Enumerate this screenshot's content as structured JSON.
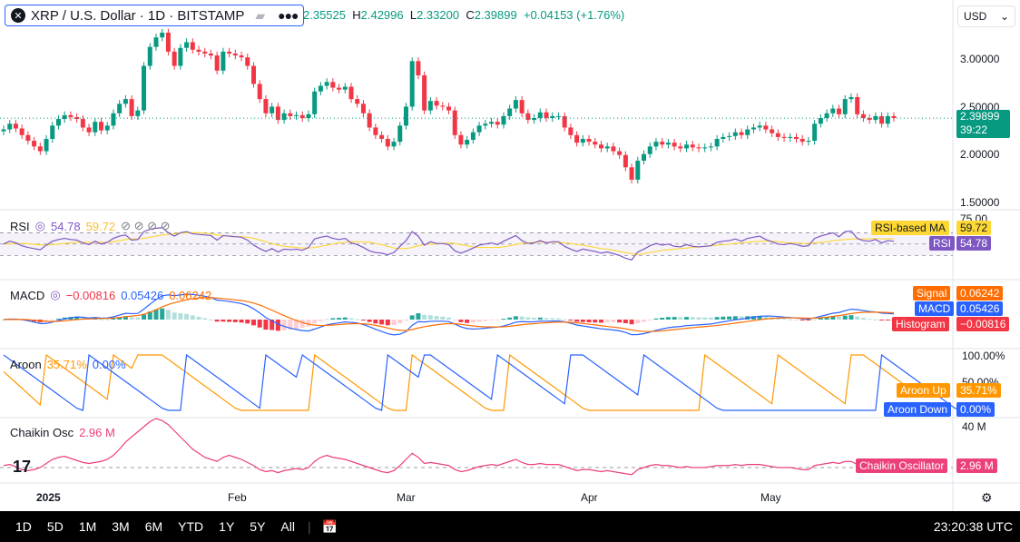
{
  "header": {
    "symbol_title": "XRP / U.S. Dollar · 1D · BITSTAMP",
    "ohlc": {
      "open_label": "",
      "open_value": "2.35525",
      "high_label": "H",
      "high_value": "2.42996",
      "low_label": "L",
      "low_value": "2.33200",
      "close_label": "C",
      "close_value": "2.39899",
      "change": "+0.04153 (+1.76%)"
    },
    "currency": "USD"
  },
  "price_axis": [
    "3.00000",
    "2.50000",
    "2.00000",
    "1.50000"
  ],
  "current_price": {
    "value": "2.39899",
    "countdown": "39:22",
    "color": "#089981"
  },
  "panes": {
    "rsi": {
      "title": "RSI",
      "value1": "54.78",
      "value2": "59.72",
      "axis_top": "75.00",
      "ma_label": "RSI-based MA",
      "ma_value": "59.72",
      "rsi_label": "RSI",
      "rsi_value": "54.78"
    },
    "macd": {
      "title": "MACD",
      "hist_value": "−0.00816",
      "macd_value": "0.05426",
      "signal_value": "0.06242",
      "signal_label": "Signal",
      "macd_label": "MACD",
      "histogram_label": "Histogram"
    },
    "aroon": {
      "title": "Aroon",
      "up_value": "35.71%",
      "down_value": "0.00%",
      "axis_top": "100.00%",
      "axis_mid": "50.00%",
      "up_label": "Aroon Up",
      "down_label": "Aroon Down"
    },
    "chaikin": {
      "title": "Chaikin Osc",
      "value": "2.96 M",
      "axis_top": "40 M",
      "tag_label": "Chaikin Oscillator",
      "tag_value": "2.96 M"
    }
  },
  "time_axis": [
    "2025",
    "Feb",
    "Mar",
    "Apr",
    "May"
  ],
  "bottom_bar": {
    "ranges": [
      "1D",
      "5D",
      "1M",
      "3M",
      "6M",
      "YTD",
      "1Y",
      "5Y",
      "All"
    ],
    "clock": "23:20:38 UTC"
  },
  "colors": {
    "up": "#089981",
    "down": "#f23645",
    "rsi": "#7e57c2",
    "rsi_ma": "#fdd835",
    "macd": "#2962ff",
    "signal": "#ff6d00",
    "aroon_up": "#ff9800",
    "aroon_down": "#2962ff",
    "chaikin": "#ec407a"
  },
  "chart_data": {
    "type": "candlestick",
    "title": "XRP / U.S. Dollar · 1D · BITSTAMP",
    "ylim": [
      1.5,
      3.3
    ],
    "x_labels": [
      "2025",
      "Feb",
      "Mar",
      "Apr",
      "May"
    ],
    "close": [
      2.28,
      2.34,
      2.29,
      2.22,
      2.16,
      2.1,
      2.05,
      2.18,
      2.32,
      2.39,
      2.43,
      2.41,
      2.39,
      2.3,
      2.25,
      2.36,
      2.27,
      2.32,
      2.45,
      2.55,
      2.6,
      2.42,
      2.48,
      2.95,
      3.15,
      3.25,
      3.3,
      3.1,
      2.95,
      3.14,
      3.2,
      3.12,
      3.1,
      3.08,
      3.06,
      2.9,
      3.1,
      3.08,
      3.06,
      3.04,
      2.95,
      2.76,
      2.6,
      2.45,
      2.52,
      2.38,
      2.45,
      2.42,
      2.43,
      2.4,
      2.44,
      2.68,
      2.74,
      2.78,
      2.72,
      2.7,
      2.73,
      2.6,
      2.55,
      2.45,
      2.3,
      2.22,
      2.18,
      2.1,
      2.15,
      2.32,
      2.52,
      3.0,
      2.85,
      2.48,
      2.58,
      2.53,
      2.52,
      2.48,
      2.22,
      2.12,
      2.17,
      2.25,
      2.32,
      2.34,
      2.36,
      2.33,
      2.42,
      2.5,
      2.59,
      2.45,
      2.38,
      2.4,
      2.46,
      2.4,
      2.42,
      2.42,
      2.3,
      2.22,
      2.14,
      2.18,
      2.15,
      2.12,
      2.08,
      2.1,
      2.05,
      2.01,
      1.88,
      1.75,
      1.95,
      2.02,
      2.1,
      2.15,
      2.12,
      2.14,
      2.1,
      2.08,
      2.12,
      2.09,
      2.08,
      2.09,
      2.1,
      2.18,
      2.2,
      2.21,
      2.25,
      2.22,
      2.28,
      2.3,
      2.32,
      2.28,
      2.24,
      2.2,
      2.19,
      2.2,
      2.18,
      2.15,
      2.16,
      2.34,
      2.4,
      2.45,
      2.5,
      2.44,
      2.6,
      2.62,
      2.44,
      2.4,
      2.38,
      2.42,
      2.34,
      2.42,
      2.4
    ],
    "rsi": [
      50,
      55,
      52,
      47,
      44,
      42,
      40,
      48,
      55,
      58,
      60,
      58,
      57,
      52,
      49,
      55,
      50,
      53,
      60,
      64,
      66,
      57,
      58,
      72,
      76,
      78,
      79,
      70,
      64,
      70,
      72,
      68,
      67,
      66,
      65,
      57,
      65,
      64,
      63,
      62,
      57,
      48,
      42,
      37,
      42,
      36,
      41,
      40,
      41,
      39,
      44,
      59,
      62,
      64,
      60,
      58,
      60,
      52,
      49,
      44,
      38,
      35,
      34,
      31,
      35,
      46,
      56,
      72,
      64,
      48,
      54,
      51,
      51,
      49,
      38,
      34,
      38,
      43,
      48,
      50,
      52,
      49,
      55,
      60,
      65,
      56,
      51,
      52,
      56,
      52,
      54,
      54,
      46,
      41,
      37,
      41,
      39,
      37,
      34,
      36,
      33,
      30,
      25,
      22,
      36,
      41,
      47,
      51,
      48,
      50,
      46,
      45,
      49,
      46,
      45,
      46,
      47,
      53,
      55,
      56,
      59,
      55,
      60,
      62,
      64,
      58,
      54,
      50,
      49,
      51,
      49,
      46,
      47,
      60,
      64,
      67,
      70,
      63,
      72,
      73,
      60,
      56,
      55,
      58,
      52,
      56,
      55
    ],
    "rsi_ma": [
      50,
      50.5,
      51,
      51,
      50.5,
      49.5,
      48.5,
      48,
      49,
      50,
      51,
      52,
      53,
      53,
      53,
      53,
      53,
      53,
      54,
      56,
      58,
      59,
      59,
      60,
      62,
      64,
      66,
      67,
      68,
      69,
      70,
      70,
      70,
      69,
      68,
      66,
      65,
      64,
      63,
      63,
      62,
      60,
      57,
      54,
      51,
      48,
      46,
      45,
      44,
      43,
      43,
      44,
      46,
      48,
      50,
      52,
      53,
      54,
      54,
      54,
      53,
      51,
      49,
      46,
      43,
      42,
      42,
      44,
      47,
      49,
      50,
      50,
      51,
      52,
      51,
      49,
      47,
      45,
      44,
      44,
      44,
      44,
      45,
      47,
      49,
      51,
      52,
      53,
      54,
      53,
      53,
      53,
      52,
      51,
      49,
      48,
      46,
      44,
      42,
      41,
      39,
      37,
      35,
      33,
      32,
      33,
      35,
      37,
      39,
      40,
      41,
      42,
      43,
      44,
      45,
      46,
      47,
      48,
      49,
      50,
      51,
      52,
      53,
      54,
      55,
      55,
      55,
      54,
      53,
      52,
      52,
      51,
      51,
      52,
      53,
      54,
      56,
      57,
      58,
      59,
      59,
      59,
      59,
      60,
      59,
      59,
      59.72
    ],
    "aroon_up": [
      70,
      60,
      50,
      40,
      30,
      20,
      10,
      100,
      92,
      84,
      76,
      68,
      60,
      52,
      44,
      36,
      28,
      20,
      100,
      92,
      84,
      76,
      100,
      100,
      100,
      100,
      100,
      92,
      84,
      76,
      68,
      60,
      52,
      44,
      36,
      28,
      20,
      12,
      4,
      0,
      0,
      0,
      0,
      0,
      0,
      0,
      0,
      0,
      0,
      0,
      0,
      100,
      92,
      84,
      76,
      68,
      60,
      52,
      44,
      36,
      28,
      20,
      12,
      4,
      0,
      0,
      0,
      100,
      92,
      84,
      76,
      68,
      60,
      52,
      44,
      36,
      28,
      20,
      12,
      4,
      0,
      0,
      0,
      100,
      92,
      84,
      76,
      68,
      60,
      52,
      44,
      36,
      28,
      20,
      12,
      4,
      0,
      0,
      0,
      0,
      0,
      0,
      0,
      0,
      0,
      0,
      0,
      0,
      0,
      0,
      0,
      0,
      0,
      0,
      0,
      100,
      92,
      84,
      76,
      68,
      60,
      52,
      44,
      36,
      28,
      20,
      12,
      100,
      92,
      84,
      76,
      68,
      60,
      52,
      44,
      36,
      28,
      20,
      12,
      100,
      100,
      100,
      92,
      84,
      76,
      68,
      60,
      52,
      44,
      35.71
    ],
    "aroon_down": [
      100,
      92,
      84,
      76,
      68,
      60,
      52,
      44,
      36,
      28,
      20,
      12,
      4,
      0,
      100,
      92,
      84,
      76,
      68,
      60,
      52,
      44,
      36,
      28,
      20,
      12,
      4,
      0,
      0,
      0,
      100,
      92,
      84,
      76,
      68,
      60,
      52,
      44,
      36,
      28,
      20,
      12,
      4,
      100,
      92,
      84,
      76,
      68,
      60,
      100,
      92,
      84,
      76,
      68,
      60,
      52,
      44,
      36,
      28,
      20,
      12,
      4,
      0,
      100,
      92,
      84,
      76,
      68,
      60,
      100,
      100,
      92,
      84,
      76,
      68,
      60,
      52,
      44,
      36,
      28,
      20,
      100,
      92,
      84,
      76,
      68,
      60,
      52,
      44,
      36,
      28,
      20,
      12,
      100,
      100,
      100,
      92,
      84,
      76,
      68,
      60,
      52,
      44,
      36,
      28,
      100,
      92,
      84,
      76,
      68,
      60,
      52,
      44,
      36,
      28,
      20,
      12,
      4,
      0,
      0,
      0,
      0,
      0,
      0,
      0,
      0,
      0,
      0,
      0,
      0,
      0,
      0,
      0,
      0,
      0,
      0,
      0,
      0,
      0,
      0,
      0,
      0,
      0,
      0,
      100,
      92,
      84,
      76,
      68,
      60,
      52,
      44,
      36,
      28,
      20,
      12,
      4,
      0
    ],
    "chaikin_m": [
      2,
      3,
      1,
      -2,
      -3,
      -2,
      0,
      4,
      8,
      10,
      11,
      9,
      7,
      5,
      4,
      5,
      6,
      8,
      12,
      18,
      25,
      30,
      35,
      40,
      45,
      48,
      46,
      42,
      36,
      30,
      24,
      18,
      14,
      10,
      8,
      6,
      10,
      12,
      10,
      8,
      5,
      2,
      -2,
      -4,
      -3,
      -5,
      -3,
      -2,
      -1,
      -2,
      0,
      6,
      10,
      12,
      10,
      9,
      8,
      6,
      4,
      2,
      0,
      -2,
      -4,
      -5,
      -3,
      2,
      8,
      14,
      10,
      4,
      5,
      4,
      3,
      2,
      -2,
      -4,
      -3,
      -1,
      1,
      2,
      3,
      2,
      4,
      6,
      8,
      5,
      3,
      3,
      4,
      3,
      3,
      3,
      1,
      -1,
      -3,
      -2,
      -2,
      -3,
      -4,
      -3,
      -4,
      -5,
      -6,
      -7,
      -2,
      0,
      2,
      3,
      2,
      2,
      1,
      0,
      1,
      0,
      0,
      0,
      1,
      2,
      2,
      2,
      3,
      2,
      3,
      3,
      3,
      2,
      1,
      0,
      0,
      0,
      -1,
      -2,
      -2,
      2,
      3,
      4,
      5,
      4,
      6,
      6,
      3,
      2,
      2,
      3,
      2,
      3,
      2.96
    ]
  }
}
